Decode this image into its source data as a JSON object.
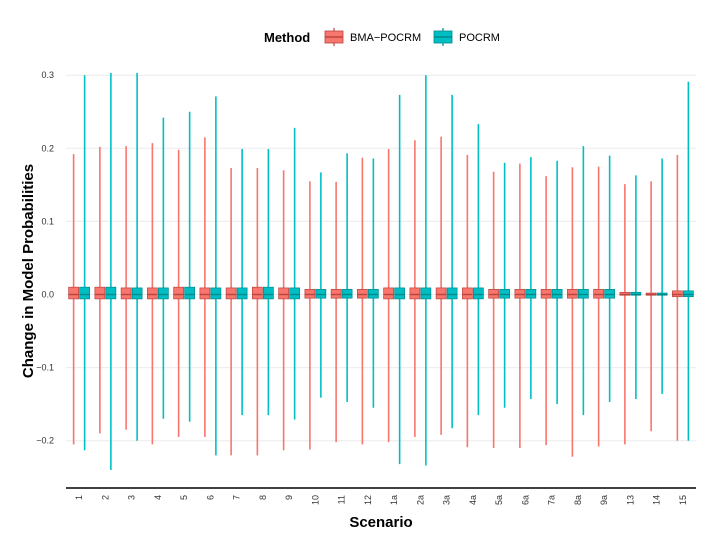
{
  "colors": {
    "bma": "#F8766D",
    "bma_dark": "#B8453E",
    "pocrm": "#00BFC4",
    "pocrm_dark": "#00898C",
    "grid": "#EBEBEB",
    "axis": "#000000"
  },
  "legend": {
    "title": "Method",
    "items": [
      "BMA−POCRM",
      "POCRM"
    ]
  },
  "chart_data": {
    "type": "boxplot",
    "xlabel": "Scenario",
    "ylabel": "Change in Model Probabilities",
    "ylim": [
      -0.265,
      0.305
    ],
    "yticks": [
      -0.2,
      -0.1,
      0.0,
      0.1,
      0.2,
      0.3
    ],
    "ytick_labels": [
      "−0.2",
      "−0.1",
      "0.0",
      "0.1",
      "0.2",
      "0.3"
    ],
    "grid": "horizontal",
    "legend_position": "top",
    "categories": [
      "1",
      "2",
      "3",
      "4",
      "5",
      "6",
      "7",
      "8",
      "9",
      "10",
      "11",
      "12",
      "1a",
      "2a",
      "3a",
      "4a",
      "5a",
      "6a",
      "7a",
      "8a",
      "9a",
      "13",
      "14",
      "15"
    ],
    "series": [
      {
        "name": "BMA−POCRM",
        "whisker_low": [
          -0.205,
          -0.19,
          -0.185,
          -0.205,
          -0.195,
          -0.195,
          -0.22,
          -0.22,
          -0.213,
          -0.212,
          -0.202,
          -0.205,
          -0.202,
          -0.195,
          -0.192,
          -0.209,
          -0.21,
          -0.21,
          -0.206,
          -0.222,
          -0.208,
          -0.205,
          -0.187,
          -0.2
        ],
        "q1": [
          -0.006,
          -0.006,
          -0.006,
          -0.006,
          -0.006,
          -0.006,
          -0.006,
          -0.006,
          -0.006,
          -0.005,
          -0.005,
          -0.005,
          -0.006,
          -0.006,
          -0.006,
          -0.006,
          -0.005,
          -0.005,
          -0.005,
          -0.005,
          -0.005,
          -0.001,
          -0.001,
          -0.003
        ],
        "median": [
          0.0,
          0.0,
          0.0,
          0.0,
          0.0,
          0.0,
          0.0,
          0.0,
          0.0,
          0.0,
          0.0,
          0.0,
          0.0,
          0.0,
          0.0,
          0.0,
          0.0,
          0.0,
          0.0,
          0.0,
          0.0,
          0.0,
          0.0,
          0.0
        ],
        "q3": [
          0.01,
          0.01,
          0.009,
          0.009,
          0.01,
          0.009,
          0.009,
          0.01,
          0.009,
          0.007,
          0.007,
          0.007,
          0.009,
          0.009,
          0.009,
          0.009,
          0.007,
          0.007,
          0.007,
          0.007,
          0.007,
          0.003,
          0.002,
          0.005
        ],
        "whisker_high": [
          0.192,
          0.202,
          0.203,
          0.207,
          0.198,
          0.215,
          0.173,
          0.173,
          0.17,
          0.155,
          0.154,
          0.187,
          0.199,
          0.211,
          0.216,
          0.191,
          0.168,
          0.179,
          0.162,
          0.174,
          0.175,
          0.151,
          0.155,
          0.191
        ]
      },
      {
        "name": "POCRM",
        "whisker_low": [
          -0.213,
          -0.24,
          -0.2,
          -0.17,
          -0.174,
          -0.22,
          -0.165,
          -0.165,
          -0.171,
          -0.141,
          -0.147,
          -0.155,
          -0.232,
          -0.234,
          -0.183,
          -0.165,
          -0.155,
          -0.143,
          -0.15,
          -0.165,
          -0.147,
          -0.143,
          -0.136,
          -0.2
        ],
        "q1": [
          -0.006,
          -0.006,
          -0.006,
          -0.006,
          -0.006,
          -0.006,
          -0.006,
          -0.006,
          -0.006,
          -0.005,
          -0.005,
          -0.005,
          -0.006,
          -0.006,
          -0.006,
          -0.006,
          -0.005,
          -0.005,
          -0.005,
          -0.005,
          -0.005,
          -0.001,
          -0.001,
          -0.003
        ],
        "median": [
          0.0,
          0.0,
          0.0,
          0.0,
          0.0,
          0.0,
          0.0,
          0.0,
          0.0,
          0.0,
          0.0,
          0.0,
          0.0,
          0.0,
          0.0,
          0.0,
          0.0,
          0.0,
          0.0,
          0.0,
          0.0,
          0.0,
          0.0,
          0.0
        ],
        "q3": [
          0.01,
          0.01,
          0.009,
          0.009,
          0.01,
          0.009,
          0.009,
          0.01,
          0.009,
          0.007,
          0.007,
          0.007,
          0.009,
          0.009,
          0.009,
          0.009,
          0.007,
          0.007,
          0.007,
          0.007,
          0.007,
          0.003,
          0.002,
          0.005
        ],
        "whisker_high": [
          0.3,
          0.303,
          0.303,
          0.242,
          0.25,
          0.271,
          0.199,
          0.199,
          0.228,
          0.167,
          0.193,
          0.186,
          0.273,
          0.3,
          0.273,
          0.233,
          0.18,
          0.188,
          0.183,
          0.203,
          0.19,
          0.163,
          0.186,
          0.291
        ]
      }
    ]
  }
}
